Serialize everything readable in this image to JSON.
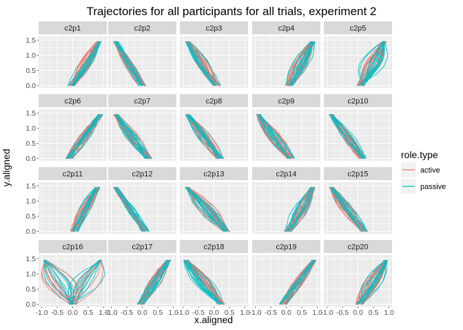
{
  "chart_data": {
    "type": "line",
    "title": "Trajectories for all participants for all trials, experiment 2",
    "xlabel": "x.aligned",
    "ylabel": "y.aligned",
    "xlim": [
      -1.0,
      1.0
    ],
    "ylim": [
      0.0,
      1.5
    ],
    "x_ticks": [
      -1.0,
      -0.5,
      0.0,
      0.5,
      1.0
    ],
    "x_tick_labels": [
      "-1.0",
      "-0.5",
      "0.0",
      "0.5",
      "1.0"
    ],
    "y_ticks": [
      0.0,
      0.5,
      1.0,
      1.5
    ],
    "y_tick_labels": [
      "0.0",
      "0.5",
      "1.0",
      "1.5"
    ],
    "grid": true,
    "legend": {
      "title": "role.type",
      "placement": "right",
      "entries": [
        {
          "label": "active",
          "color": "#F8766D"
        },
        {
          "label": "passive",
          "color": "#00BFC4"
        }
      ]
    },
    "facet_layout": {
      "rows": 4,
      "cols": 5
    },
    "panels": [
      {
        "id": "c2p1",
        "direction": "right",
        "x0": -0.05,
        "x1": 0.85,
        "passive_spread": 0.25,
        "active_spread": 0.2
      },
      {
        "id": "c2p2",
        "direction": "left",
        "x0": 0.0,
        "x1": -0.85,
        "passive_spread": 0.12,
        "active_spread": 0.12
      },
      {
        "id": "c2p3",
        "direction": "left",
        "x0": 0.1,
        "x1": -0.85,
        "passive_spread": 0.22,
        "active_spread": 0.15
      },
      {
        "id": "c2p4",
        "direction": "right",
        "x0": 0.1,
        "x1": 0.85,
        "passive_spread": 0.25,
        "active_spread": 0.2
      },
      {
        "id": "c2p5",
        "direction": "right",
        "x0": 0.1,
        "x1": 0.85,
        "passive_spread": 0.45,
        "active_spread": 0.25
      },
      {
        "id": "c2p6",
        "direction": "right",
        "x0": -0.1,
        "x1": 0.9,
        "passive_spread": 0.15,
        "active_spread": 0.12
      },
      {
        "id": "c2p7",
        "direction": "left",
        "x0": 0.2,
        "x1": -0.85,
        "passive_spread": 0.25,
        "active_spread": 0.15
      },
      {
        "id": "c2p8",
        "direction": "left",
        "x0": 0.2,
        "x1": -0.85,
        "passive_spread": 0.2,
        "active_spread": 0.18
      },
      {
        "id": "c2p9",
        "direction": "left",
        "x0": 0.15,
        "x1": -0.9,
        "passive_spread": 0.3,
        "active_spread": 0.2
      },
      {
        "id": "c2p10",
        "direction": "left",
        "x0": 0.15,
        "x1": -0.85,
        "passive_spread": 0.2,
        "active_spread": 0.15
      },
      {
        "id": "c2p11",
        "direction": "right",
        "x0": 0.05,
        "x1": 0.8,
        "passive_spread": 0.22,
        "active_spread": 0.18
      },
      {
        "id": "c2p12",
        "direction": "left",
        "x0": 0.1,
        "x1": -0.85,
        "passive_spread": 0.15,
        "active_spread": 0.12
      },
      {
        "id": "c2p13",
        "direction": "left",
        "x0": 0.4,
        "x1": -0.85,
        "passive_spread": 0.3,
        "active_spread": 0.3
      },
      {
        "id": "c2p14",
        "direction": "right",
        "x0": 0.05,
        "x1": 0.85,
        "passive_spread": 0.25,
        "active_spread": 0.2
      },
      {
        "id": "c2p15",
        "direction": "left",
        "x0": 0.2,
        "x1": -0.85,
        "passive_spread": 0.25,
        "active_spread": 0.2
      },
      {
        "id": "c2p16",
        "direction": "both",
        "x0": 0.0,
        "x1": -0.9,
        "passive_spread": 0.6,
        "active_spread": 0.5
      },
      {
        "id": "c2p17",
        "direction": "right",
        "x0": -0.05,
        "x1": 0.85,
        "passive_spread": 0.22,
        "active_spread": 0.2
      },
      {
        "id": "c2p18",
        "direction": "left",
        "x0": 0.25,
        "x1": -0.9,
        "passive_spread": 0.3,
        "active_spread": 0.25
      },
      {
        "id": "c2p19",
        "direction": "right",
        "x0": -0.1,
        "x1": 0.9,
        "passive_spread": 0.15,
        "active_spread": 0.12
      },
      {
        "id": "c2p20",
        "direction": "right",
        "x0": 0.05,
        "x1": 0.9,
        "passive_spread": 0.3,
        "active_spread": 0.2
      }
    ]
  },
  "colors": {
    "panel_bg": "#EBEBEB",
    "strip_bg": "#D9D9D9",
    "grid_major": "#FFFFFF",
    "active": "#F8766D",
    "passive": "#00BFC4"
  }
}
